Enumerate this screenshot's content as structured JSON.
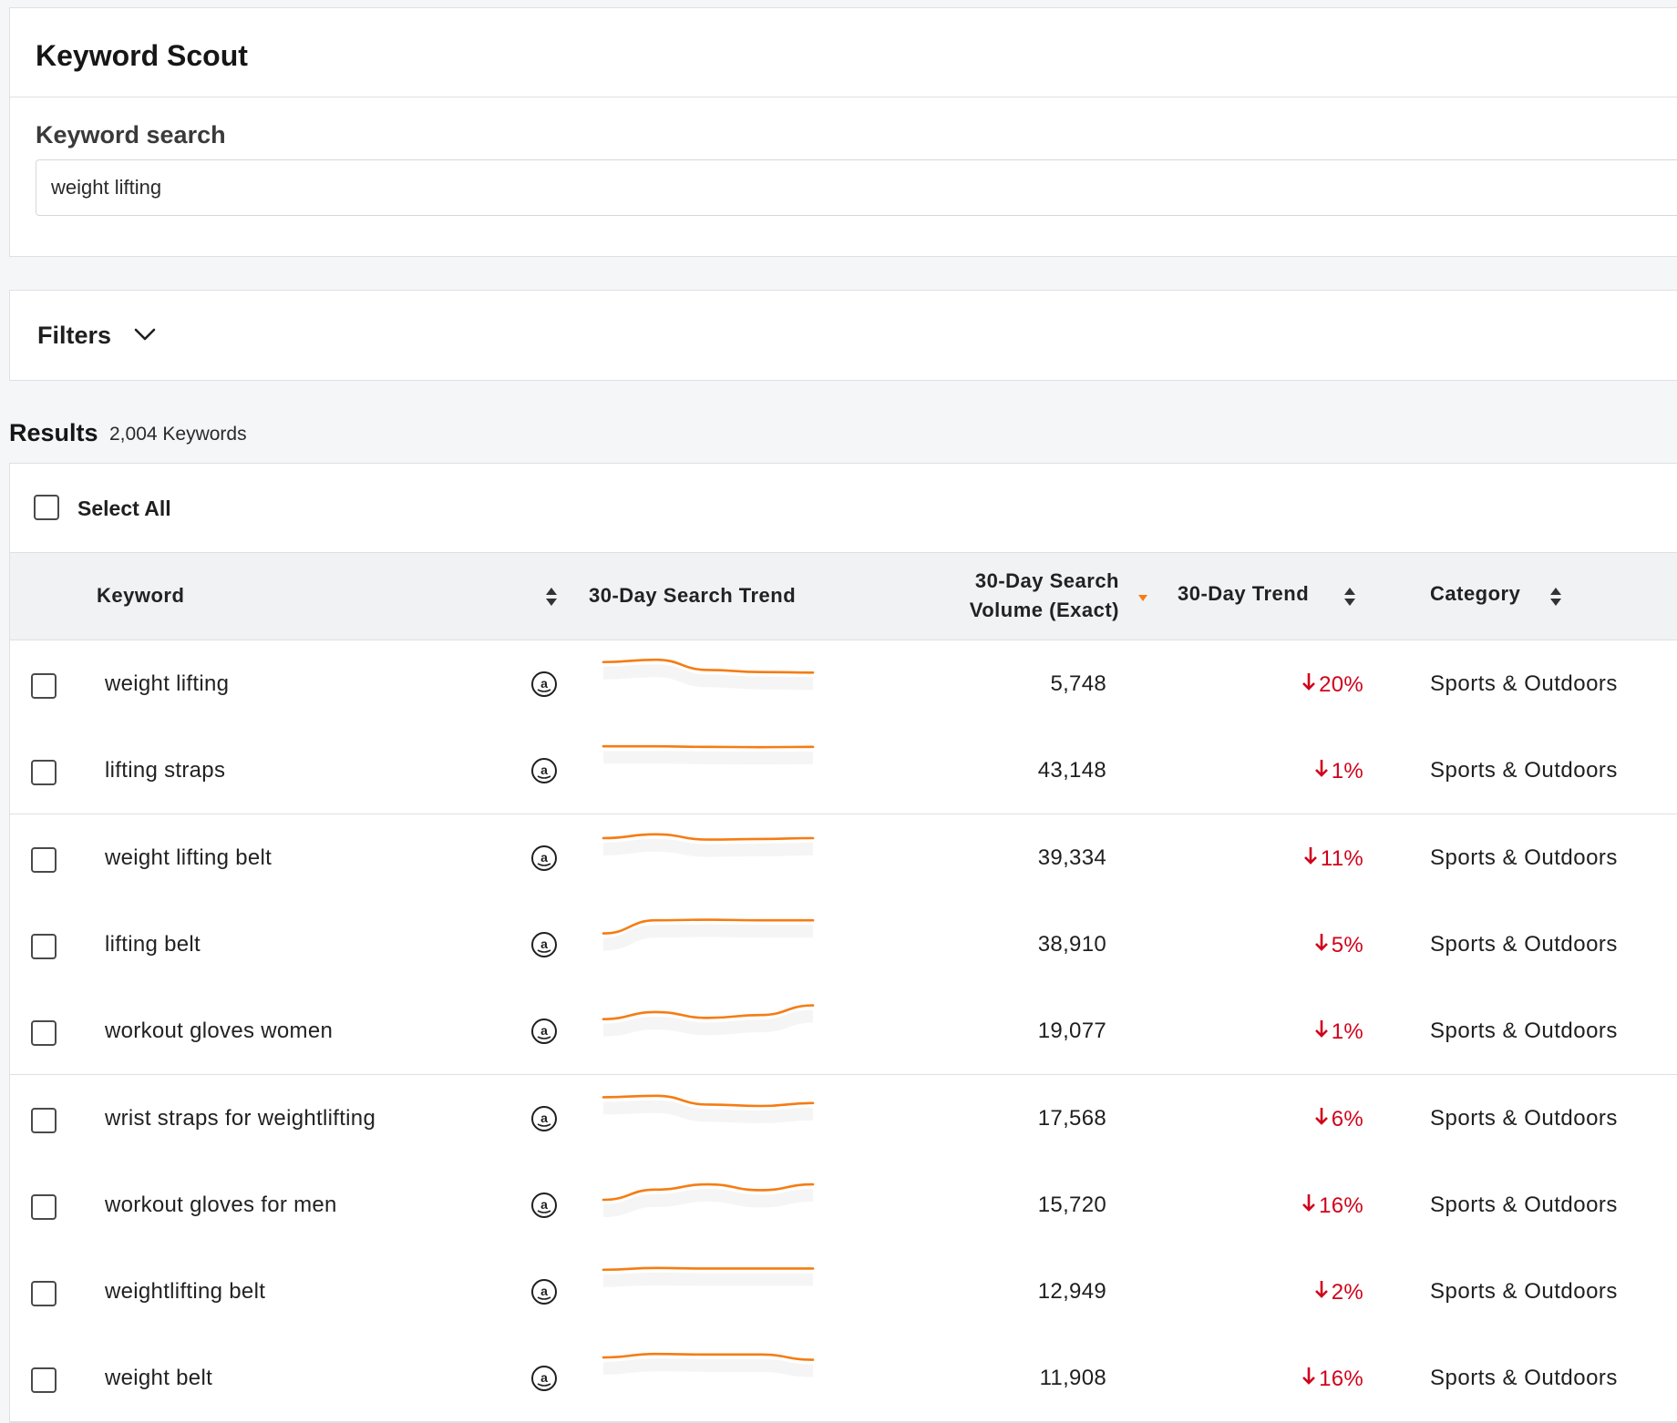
{
  "app": {
    "title": "Keyword Scout"
  },
  "search": {
    "label": "Keyword search",
    "value": "weight lifting"
  },
  "filters": {
    "label": "Filters"
  },
  "results": {
    "heading": "Results",
    "count": "2,004 Keywords"
  },
  "select_all": {
    "label": "Select All"
  },
  "columns": {
    "keyword": "Keyword",
    "search_trend": "30-Day Search Trend",
    "volume_line1": "30-Day Search",
    "volume_line2": "Volume (Exact)",
    "trend": "30-Day Trend",
    "category": "Category"
  },
  "colors": {
    "accent": "#f57c13",
    "negative": "#d0021b"
  },
  "icons": {
    "marketplace": "amazon-icon",
    "trend_down": "arrow-down-icon",
    "sort": "sort-icon",
    "sort_active": "sort-desc-icon",
    "filters": "chevron-down-icon"
  },
  "rows": [
    {
      "keyword": "weight lifting",
      "volume": "5,748",
      "trend": "20%",
      "category": "Sports & Outdoors",
      "spark": [
        0.82,
        0.9,
        0.55,
        0.48,
        0.46
      ]
    },
    {
      "keyword": "lifting straps",
      "volume": "43,148",
      "trend": "1%",
      "category": "Sports & Outdoors",
      "spark": [
        0.9,
        0.9,
        0.88,
        0.87,
        0.88
      ]
    },
    {
      "keyword": "weight lifting belt",
      "volume": "39,334",
      "trend": "11%",
      "category": "Sports & Outdoors",
      "spark": [
        0.75,
        0.88,
        0.7,
        0.72,
        0.75
      ]
    },
    {
      "keyword": "lifting belt",
      "volume": "38,910",
      "trend": "5%",
      "category": "Sports & Outdoors",
      "spark": [
        0.45,
        0.9,
        0.92,
        0.9,
        0.9
      ]
    },
    {
      "keyword": "workout gloves women",
      "volume": "19,077",
      "trend": "1%",
      "category": "Sports & Outdoors",
      "spark": [
        0.48,
        0.72,
        0.52,
        0.62,
        0.95
      ]
    },
    {
      "keyword": "wrist straps for weightlifting",
      "volume": "17,568",
      "trend": "6%",
      "category": "Sports & Outdoors",
      "spark": [
        0.8,
        0.85,
        0.55,
        0.5,
        0.6
      ]
    },
    {
      "keyword": "workout gloves for men",
      "volume": "15,720",
      "trend": "16%",
      "category": "Sports & Outdoors",
      "spark": [
        0.25,
        0.6,
        0.78,
        0.58,
        0.78
      ]
    },
    {
      "keyword": "weightlifting belt",
      "volume": "12,949",
      "trend": "2%",
      "category": "Sports & Outdoors",
      "spark": [
        0.82,
        0.88,
        0.86,
        0.86,
        0.86
      ]
    },
    {
      "keyword": "weight belt",
      "volume": "11,908",
      "trend": "16%",
      "category": "Sports & Outdoors",
      "spark": [
        0.78,
        0.9,
        0.88,
        0.88,
        0.7
      ]
    }
  ]
}
